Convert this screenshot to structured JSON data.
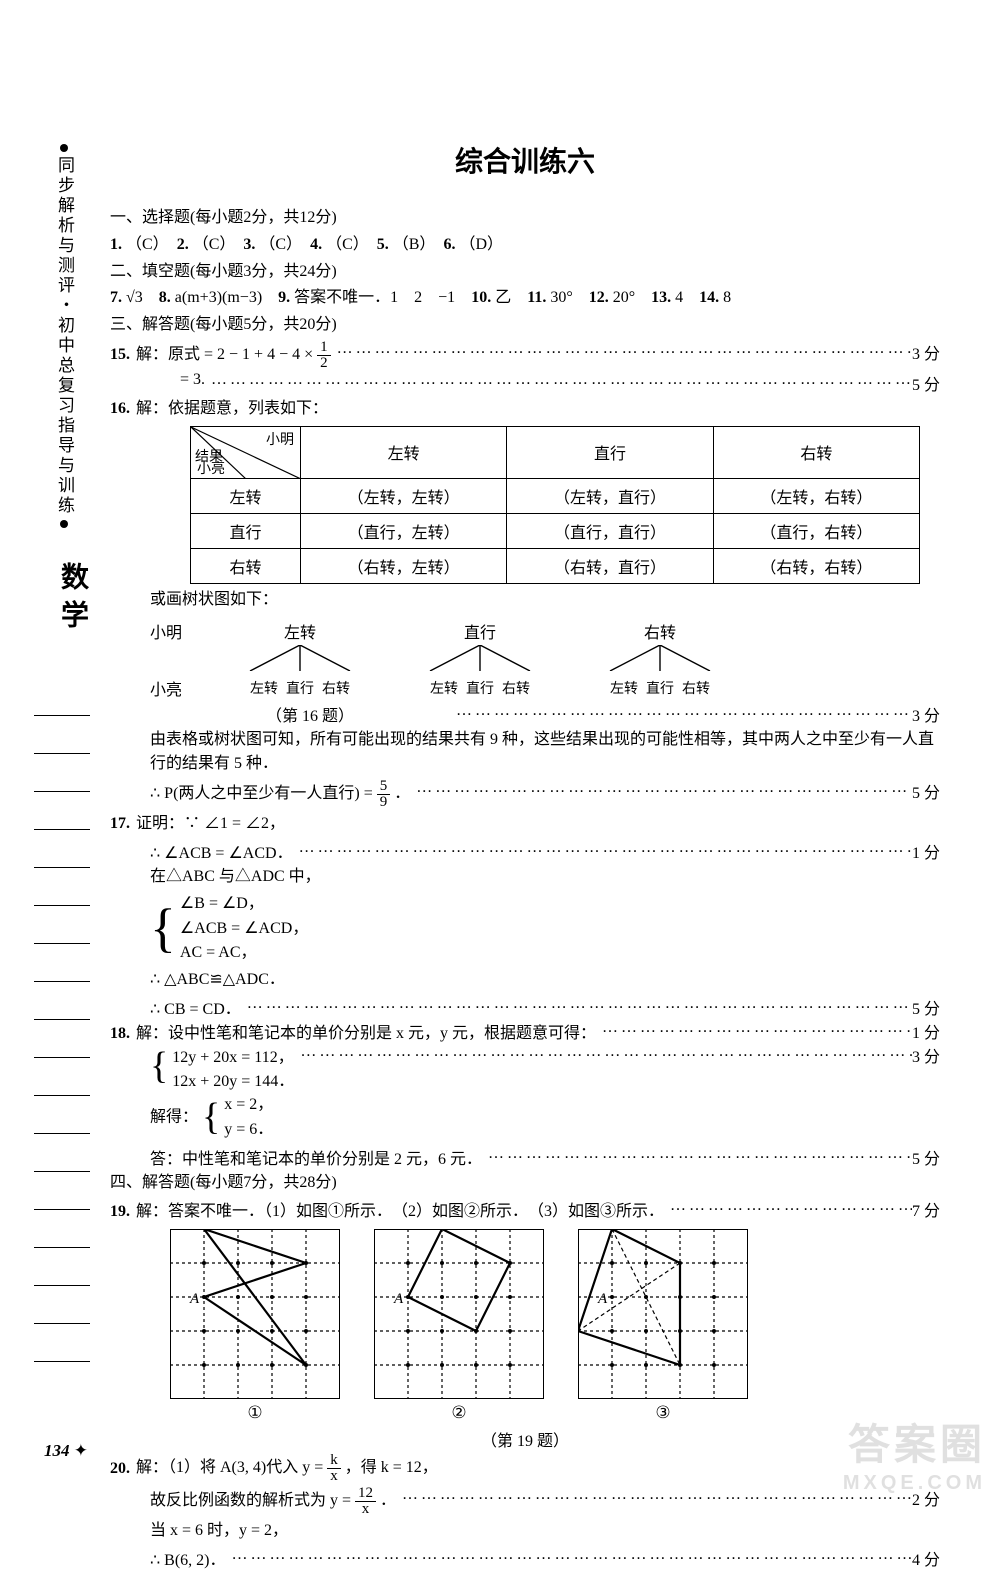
{
  "sidebar": {
    "title_chars": "同步解析与测评・初中总复习指导与训练",
    "subject": "数学",
    "note_line_count": 18,
    "page_number": "134"
  },
  "title": "综合训练六",
  "section1": {
    "header": "一、选择题(每小题2分，共12分)",
    "answers": [
      {
        "n": "1.",
        "a": "（C）"
      },
      {
        "n": "2.",
        "a": "（C）"
      },
      {
        "n": "3.",
        "a": "（C）"
      },
      {
        "n": "4.",
        "a": "（C）"
      },
      {
        "n": "5.",
        "a": "（B）"
      },
      {
        "n": "6.",
        "a": "（D）"
      }
    ]
  },
  "section2": {
    "header": "二、填空题(每小题3分，共24分)",
    "answers": [
      {
        "n": "7.",
        "a": "√3"
      },
      {
        "n": "8.",
        "a": "a(m+3)(m−3)"
      },
      {
        "n": "9.",
        "a": "答案不唯一．1　2　−1"
      },
      {
        "n": "10.",
        "a": "乙"
      },
      {
        "n": "11.",
        "a": "30°"
      },
      {
        "n": "12.",
        "a": "20°"
      },
      {
        "n": "13.",
        "a": "4"
      },
      {
        "n": "14.",
        "a": "8"
      }
    ]
  },
  "section3": {
    "header": "三、解答题(每小题5分，共20分)"
  },
  "q15": {
    "n": "15.",
    "line1_lead": "解：原式 = 2 − 1 + 4 − 4 × ",
    "frac1": {
      "n": "1",
      "d": "2"
    },
    "score1": "3 分",
    "line2": "= 3.",
    "score2": "5 分"
  },
  "q16": {
    "n": "16.",
    "intro": "解：依据题意，列表如下：",
    "table": {
      "hdr_top": "小明",
      "hdr_mid": "结果",
      "hdr_left": "小亮",
      "cols": [
        "左转",
        "直行",
        "右转"
      ],
      "rows": [
        {
          "h": "左转",
          "c": [
            "（左转，左转）",
            "（左转，直行）",
            "（左转，右转）"
          ]
        },
        {
          "h": "直行",
          "c": [
            "（直行，左转）",
            "（直行，直行）",
            "（直行，右转）"
          ]
        },
        {
          "h": "右转",
          "c": [
            "（右转，左转）",
            "（右转，直行）",
            "（右转，右转）"
          ]
        }
      ]
    },
    "tree_intro": "或画树状图如下：",
    "tree": {
      "row1_label": "小明",
      "row1": [
        "左转",
        "直行",
        "右转"
      ],
      "row2_label": "小亮",
      "row2": [
        "左转",
        "直行",
        "右转"
      ]
    },
    "caption": "（第 16 题）",
    "score_tree": "3 分",
    "explain": "由表格或树状图可知，所有可能出现的结果共有 9 种，这些结果出现的可能性相等，其中两人之中至少有一人直行的结果有 5 种．",
    "prob_lead": "∴ P(两人之中至少有一人直行) = ",
    "prob_frac": {
      "n": "5",
      "d": "9"
    },
    "prob_tail": "．",
    "score_prob": "5 分"
  },
  "q17": {
    "n": "17.",
    "l1": "证明：∵ ∠1 = ∠2，",
    "l2": "∴ ∠ACB = ∠ACD．",
    "score_l2": "1 分",
    "l3": "在△ABC 与△ADC 中，",
    "sys": [
      "∠B = ∠D，",
      "∠ACB = ∠ACD，",
      "AC = AC，"
    ],
    "l4": "∴ △ABC≌△ADC．",
    "l5": "∴ CB = CD．",
    "score_l5": "5 分"
  },
  "q18": {
    "n": "18.",
    "l1": "解：设中性笔和笔记本的单价分别是 x 元，y 元，根据题意可得：",
    "score_l1": "1 分",
    "sys": [
      "12y + 20x = 112，",
      "12x + 20y = 144．"
    ],
    "score_sys": "3 分",
    "solve_lead": "解得：",
    "solve_sys": [
      "x = 2，",
      "y = 6．"
    ],
    "ans": "答：中性笔和笔记本的单价分别是 2 元，6 元．",
    "score_ans": "5 分"
  },
  "section4": {
    "header": "四、解答题(每小题7分，共28分)"
  },
  "q19": {
    "n": "19.",
    "lead": "解：答案不唯一．（1）如图①所示．　（2）如图②所示．　（3）如图③所示．",
    "score": "7 分",
    "caps": [
      "①",
      "②",
      "③"
    ],
    "caption": "（第 19 题）",
    "grid": {
      "size": 170,
      "cells": 5,
      "dot_r": 2,
      "line_w": 1.2,
      "border_w": 2,
      "bg": "#ffffff",
      "grid_color": "#000000",
      "shape_color": "#000000",
      "shape_w": 2.2,
      "A_label": "A",
      "A_pos": [
        1,
        2
      ]
    },
    "fig1_points": [
      [
        1,
        0
      ],
      [
        4,
        1
      ],
      [
        1,
        2
      ],
      [
        4,
        4
      ]
    ],
    "fig2_points": [
      [
        1,
        2
      ],
      [
        2,
        0
      ],
      [
        4,
        1
      ],
      [
        3,
        3
      ]
    ],
    "fig3_points": [
      [
        1,
        0
      ],
      [
        3,
        1
      ],
      [
        3,
        4
      ],
      [
        0,
        3
      ]
    ],
    "fig3_diag": true
  },
  "q20": {
    "n": "20.",
    "l1_a": "解：（1）将 A(3, 4)代入 y = ",
    "l1_frac": {
      "n": "k",
      "d": "x"
    },
    "l1_b": "，得 k = 12，",
    "l2_a": "故反比例函数的解析式为 y = ",
    "l2_frac": {
      "n": "12",
      "d": "x"
    },
    "l2_b": "．",
    "score_l2": "2 分",
    "l3": "当 x = 6 时，y = 2，",
    "l4": "∴ B(6, 2)．",
    "score_l4": "4 分"
  },
  "watermark": {
    "line1": "答案圈",
    "line2": "MXQE.COM"
  },
  "dots_str": "………………………………………………………………………………………………………………………………………………"
}
